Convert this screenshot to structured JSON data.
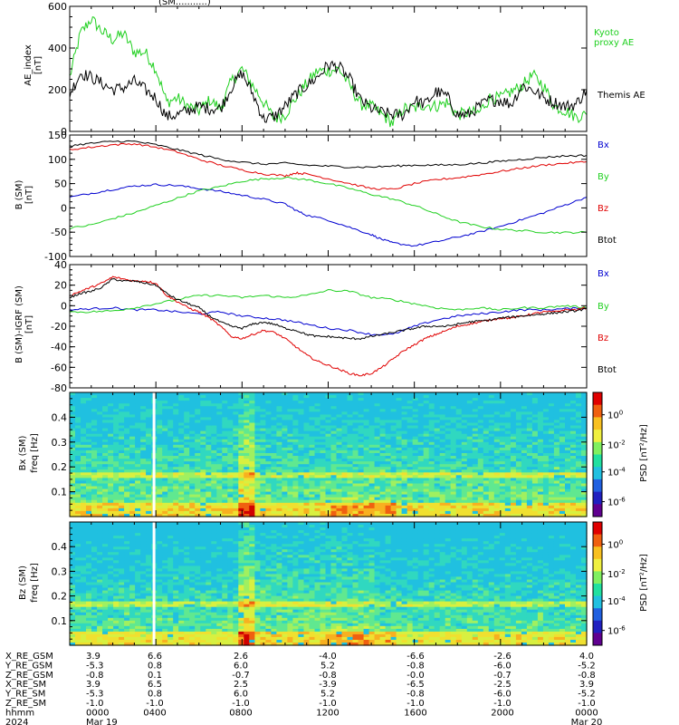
{
  "colors": {
    "black": "#000000",
    "green": "#20d020",
    "blue": "#0000d0",
    "red": "#e00000",
    "bg": "#ffffff"
  },
  "chart_data": [
    {
      "type": "line",
      "panel": "ae",
      "ylabel": "AE_index [nT]",
      "ylim": [
        0,
        600
      ],
      "yticks": [
        0,
        200,
        400,
        600
      ],
      "xlim": [
        0,
        24
      ],
      "series": [
        {
          "name": "Kyoto proxy AE",
          "color": "#20d020",
          "x": [
            0,
            0.5,
            1,
            1.5,
            2,
            2.5,
            3,
            3.5,
            4,
            4.5,
            5,
            5.5,
            6,
            6.5,
            7,
            7.5,
            8,
            8.5,
            9,
            9.5,
            10,
            10.5,
            11,
            11.5,
            12,
            12.5,
            13,
            13.5,
            14,
            14.5,
            15,
            15.5,
            16,
            16.5,
            17,
            17.5,
            18,
            18.5,
            19,
            19.5,
            20,
            20.5,
            21,
            21.5,
            22,
            22.5,
            23,
            23.5,
            24
          ],
          "values": [
            260,
            470,
            540,
            480,
            440,
            470,
            380,
            380,
            300,
            140,
            160,
            120,
            100,
            150,
            110,
            240,
            300,
            220,
            140,
            60,
            80,
            160,
            230,
            290,
            290,
            300,
            220,
            130,
            120,
            80,
            40,
            110,
            110,
            130,
            120,
            140,
            80,
            90,
            90,
            160,
            160,
            190,
            220,
            270,
            220,
            120,
            100,
            70,
            80
          ]
        },
        {
          "name": "Themis AE",
          "color": "#000000",
          "x": [
            0,
            0.5,
            1,
            1.5,
            2,
            2.5,
            3,
            3.5,
            4,
            4.5,
            5,
            5.5,
            6,
            6.5,
            7,
            7.5,
            8,
            8.5,
            9,
            9.5,
            10,
            10.5,
            11,
            11.5,
            12,
            12.5,
            13,
            13.5,
            14,
            14.5,
            15,
            15.5,
            16,
            16.5,
            17,
            17.5,
            18,
            18.5,
            19,
            19.5,
            20,
            20.5,
            21,
            21.5,
            22,
            22.5,
            23,
            23.5,
            24
          ],
          "values": [
            180,
            280,
            260,
            230,
            200,
            210,
            240,
            200,
            160,
            70,
            80,
            100,
            120,
            110,
            110,
            210,
            280,
            180,
            60,
            70,
            120,
            180,
            220,
            260,
            320,
            310,
            250,
            150,
            110,
            90,
            80,
            80,
            150,
            130,
            190,
            170,
            80,
            80,
            120,
            150,
            150,
            130,
            220,
            200,
            160,
            140,
            120,
            130,
            200
          ]
        }
      ]
    },
    {
      "type": "line",
      "panel": "b",
      "ylabel": "B (SM) [nT]",
      "ylim": [
        -100,
        150
      ],
      "yticks": [
        -100,
        -50,
        0,
        50,
        100,
        150
      ],
      "xlim": [
        0,
        24
      ],
      "series": [
        {
          "name": "Bx",
          "color": "#0000d0",
          "x": [
            0,
            1,
            2,
            3,
            4,
            5,
            6,
            7,
            8,
            9,
            10,
            10.5,
            11,
            12,
            13,
            14,
            14.5,
            15,
            16,
            17,
            18,
            19,
            20,
            21,
            22,
            23,
            24
          ],
          "values": [
            22,
            30,
            38,
            45,
            48,
            46,
            40,
            34,
            26,
            18,
            8,
            -5,
            -15,
            -25,
            -40,
            -55,
            -65,
            -72,
            -78,
            -70,
            -60,
            -50,
            -38,
            -24,
            -10,
            6,
            22
          ]
        },
        {
          "name": "By",
          "color": "#20d020",
          "x": [
            0,
            1,
            2,
            3,
            4,
            5,
            6,
            7,
            8,
            9,
            10,
            11,
            12,
            13,
            14,
            15,
            16,
            17,
            18,
            19,
            20,
            21,
            22,
            23,
            24
          ],
          "values": [
            -42,
            -35,
            -22,
            -10,
            5,
            20,
            35,
            44,
            55,
            60,
            62,
            58,
            50,
            40,
            28,
            18,
            5,
            -12,
            -28,
            -38,
            -44,
            -47,
            -50,
            -51,
            -50
          ]
        },
        {
          "name": "Bz",
          "color": "#e00000",
          "x": [
            0,
            1,
            2,
            3,
            4,
            5,
            6,
            7,
            8,
            9,
            10,
            10.5,
            11,
            12,
            13,
            14,
            15,
            16,
            17,
            18,
            19,
            20,
            21,
            22,
            23,
            24
          ],
          "values": [
            120,
            125,
            130,
            132,
            125,
            115,
            100,
            88,
            78,
            70,
            66,
            72,
            70,
            60,
            50,
            40,
            38,
            50,
            58,
            62,
            68,
            75,
            82,
            88,
            92,
            95
          ]
        },
        {
          "name": "Btot",
          "color": "#000000",
          "x": [
            0,
            1,
            2,
            3,
            4,
            5,
            6,
            7,
            8,
            9,
            10,
            11,
            12,
            13,
            14,
            15,
            16,
            17,
            18,
            19,
            20,
            21,
            22,
            23,
            24
          ],
          "values": [
            128,
            133,
            137,
            137,
            130,
            120,
            110,
            100,
            94,
            90,
            92,
            88,
            86,
            84,
            84,
            86,
            88,
            88,
            89,
            92,
            96,
            100,
            104,
            107,
            108
          ]
        }
      ]
    },
    {
      "type": "line",
      "panel": "bdiff",
      "ylabel": "B (SM)-IGRF (SM) [nT]",
      "ylim": [
        -80,
        40
      ],
      "yticks": [
        -80,
        -60,
        -40,
        -20,
        0,
        20,
        40
      ],
      "xlim": [
        0,
        24
      ],
      "series": [
        {
          "name": "Bx",
          "color": "#0000d0",
          "x": [
            0,
            1,
            2,
            3,
            4,
            5,
            6,
            7,
            8,
            9,
            10,
            11,
            12,
            13,
            14,
            15,
            16,
            17,
            18,
            19,
            20,
            21,
            22,
            23,
            24
          ],
          "values": [
            -4,
            -3,
            -2,
            -4,
            -4,
            -6,
            -8,
            -6,
            -10,
            -12,
            -14,
            -18,
            -22,
            -24,
            -28,
            -28,
            -20,
            -14,
            -10,
            -8,
            -6,
            -4,
            -4,
            -3,
            -2
          ]
        },
        {
          "name": "By",
          "color": "#20d020",
          "x": [
            0,
            1,
            2,
            3,
            4,
            5,
            6,
            7,
            8,
            9,
            10,
            11,
            12,
            13,
            14,
            15,
            16,
            17,
            18,
            19,
            20,
            21,
            22,
            23,
            24
          ],
          "values": [
            -6,
            -6,
            -5,
            -2,
            2,
            6,
            10,
            10,
            8,
            10,
            8,
            10,
            15,
            14,
            8,
            6,
            2,
            -2,
            -4,
            -2,
            -4,
            -2,
            -2,
            0,
            -2
          ]
        },
        {
          "name": "Bz",
          "color": "#e00000",
          "x": [
            0,
            0.5,
            1,
            1.5,
            2,
            2.5,
            3,
            3.5,
            4,
            4.5,
            5,
            5.5,
            6,
            6.5,
            7,
            7.5,
            8,
            8.5,
            9,
            9.5,
            10,
            10.5,
            11,
            11.5,
            12,
            12.5,
            13,
            13.5,
            14,
            14.5,
            15,
            15.5,
            16,
            16.5,
            17,
            17.5,
            18,
            18.5,
            19,
            19.5,
            20,
            20.5,
            21,
            21.5,
            22,
            22.5,
            23,
            23.5,
            24
          ],
          "values": [
            10,
            14,
            18,
            22,
            28,
            26,
            24,
            24,
            22,
            10,
            4,
            -2,
            -6,
            -12,
            -20,
            -30,
            -32,
            -28,
            -24,
            -26,
            -32,
            -40,
            -48,
            -54,
            -58,
            -62,
            -66,
            -68,
            -66,
            -60,
            -52,
            -44,
            -38,
            -32,
            -28,
            -24,
            -20,
            -18,
            -16,
            -14,
            -12,
            -12,
            -10,
            -8,
            -6,
            -6,
            -4,
            -4,
            -2
          ]
        },
        {
          "name": "Btot",
          "color": "#000000",
          "x": [
            0,
            0.5,
            1,
            1.5,
            2,
            2.5,
            3,
            3.5,
            4,
            4.5,
            5,
            5.5,
            6,
            6.5,
            7,
            7.5,
            8,
            8.5,
            9,
            9.5,
            10,
            10.5,
            11,
            11.5,
            12,
            12.5,
            13,
            13.5,
            14,
            14.5,
            15,
            15.5,
            16,
            16.5,
            17,
            17.5,
            18,
            18.5,
            19,
            19.5,
            20,
            20.5,
            21,
            21.5,
            22,
            22.5,
            23,
            23.5,
            24
          ],
          "values": [
            8,
            12,
            14,
            18,
            26,
            24,
            24,
            22,
            20,
            12,
            6,
            2,
            -2,
            -10,
            -16,
            -20,
            -22,
            -18,
            -16,
            -18,
            -22,
            -24,
            -28,
            -30,
            -30,
            -31,
            -32,
            -32,
            -30,
            -28,
            -26,
            -24,
            -22,
            -20,
            -20,
            -20,
            -18,
            -16,
            -15,
            -14,
            -12,
            -11,
            -10,
            -9,
            -8,
            -7,
            -6,
            -5,
            -3
          ]
        }
      ]
    },
    {
      "type": "heatmap",
      "panel": "bx-spec",
      "ylabel": "Bx (SM) freq [Hz]",
      "ylim": [
        0,
        0.5
      ],
      "yticks": [
        0.1,
        0.2,
        0.3,
        0.4
      ],
      "xlim": [
        0,
        24
      ],
      "colorbar": {
        "label": "PSD [nT^2/Hz]",
        "ticks": [
          "10^0",
          "10^-2",
          "10^-4",
          "10^-6"
        ]
      }
    },
    {
      "type": "heatmap",
      "panel": "bz-spec",
      "ylabel": "Bz (SM) freq [Hz]",
      "ylim": [
        0,
        0.5
      ],
      "yticks": [
        0.1,
        0.2,
        0.3,
        0.4
      ],
      "xlim": [
        0,
        24
      ],
      "colorbar": {
        "label": "PSD [nT^2/Hz]",
        "ticks": [
          "10^0",
          "10^-2",
          "10^-4",
          "10^-6"
        ]
      }
    }
  ],
  "labels": {
    "ae_top_clip": "(SM...........)",
    "legend_kyoto_1": "Kyoto",
    "legend_kyoto_2": "proxy AE",
    "legend_themis": "Themis AE",
    "legend_bx": "Bx",
    "legend_by": "By",
    "legend_bz": "Bz",
    "legend_btot": "Btot",
    "ae_ylabel_1": "AE_index",
    "ae_ylabel_2": "[nT]",
    "b_ylabel_1": "B (SM)",
    "b_ylabel_2": "[nT]",
    "bd_ylabel_1": "B (SM)-IGRF (SM)",
    "bd_ylabel_2": "[nT]",
    "sx_ylabel_1": "Bx (SM)",
    "sx_ylabel_2": "freq [Hz]",
    "sz_ylabel_1": "Bz (SM)",
    "sz_ylabel_2": "freq [Hz]",
    "psd_label": "PSD [nT²/Hz]"
  },
  "ephemeris": {
    "row_labels": [
      "X_RE_GSM",
      "Y_RE_GSM",
      "Z_RE_GSM",
      "X_RE_SM",
      "Y_RE_SM",
      "Z_RE_SM",
      "hhmm",
      "2024"
    ],
    "columns": [
      [
        "3.9",
        "-5.3",
        "-0.8",
        "3.9",
        "-5.3",
        "-1.0",
        "0000",
        "Mar 19"
      ],
      [
        "6.6",
        "0.8",
        "0.1",
        "6.5",
        "0.8",
        "-1.0",
        "0400",
        ""
      ],
      [
        "2.6",
        "6.0",
        "-0.7",
        "2.5",
        "6.0",
        "-1.0",
        "0800",
        ""
      ],
      [
        "-4.0",
        "5.2",
        "-0.8",
        "-3.9",
        "5.2",
        "-1.0",
        "1200",
        ""
      ],
      [
        "-6.6",
        "-0.8",
        "-0.0",
        "-6.5",
        "-0.8",
        "-1.0",
        "1600",
        ""
      ],
      [
        "-2.6",
        "-6.0",
        "-0.7",
        "-2.5",
        "-6.0",
        "-1.0",
        "2000",
        ""
      ],
      [
        "4.0",
        "-5.2",
        "-0.8",
        "3.9",
        "-5.2",
        "-1.0",
        "0000",
        "Mar 20"
      ]
    ]
  }
}
